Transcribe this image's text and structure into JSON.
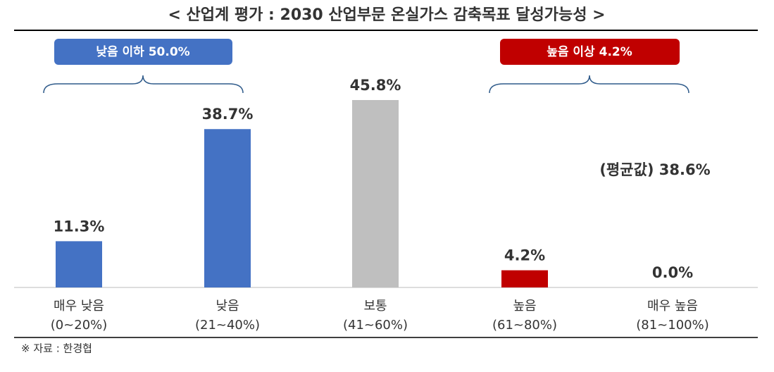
{
  "chart_data": {
    "type": "bar",
    "title": "< 산업계 평가 : 2030 산업부문 온실가스 감축목표 달성가능성 >",
    "categories": [
      [
        "매우 낮음",
        "(0~20%)"
      ],
      [
        "낮음",
        "(21~40%)"
      ],
      [
        "보통",
        "(41~60%)"
      ],
      [
        "높음",
        "(61~80%)"
      ],
      [
        "매우 높음",
        "(81~100%)"
      ]
    ],
    "values": [
      11.3,
      38.7,
      45.8,
      4.2,
      0.0
    ],
    "value_labels": [
      "11.3%",
      "38.7%",
      "45.8%",
      "4.2%",
      "0.0%"
    ],
    "colors": [
      "#4472c4",
      "#4472c4",
      "#bfbfbf",
      "#c00000",
      "#c00000"
    ],
    "low_group_label": "낮음 이하 50.0%",
    "high_group_label": "높음 이상 4.2%",
    "average_label": "(평균값) 38.6%",
    "source": "※ 자료 : 한경협"
  }
}
